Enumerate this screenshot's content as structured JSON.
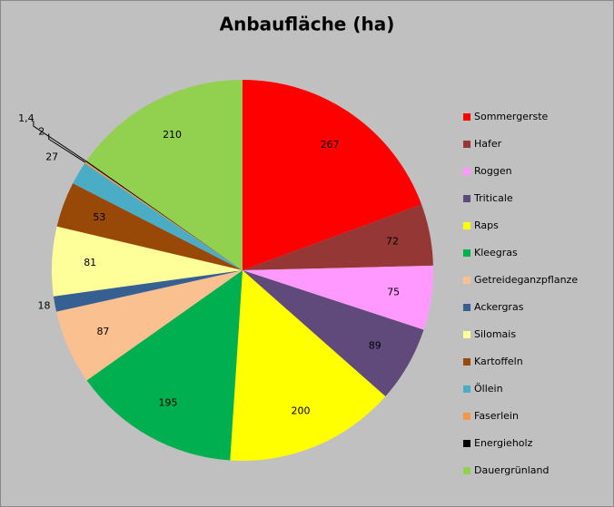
{
  "chart_data": {
    "type": "pie",
    "title": "Anbaufläche (ha)",
    "categories": [
      "Sommergerste",
      "Hafer",
      "Roggen",
      "Triticale",
      "Raps",
      "Kleegras",
      "Getreideganzpflanze",
      "Ackergras",
      "Silomais",
      "Kartoffeln",
      "Öllein",
      "Faserlein",
      "Energieholz",
      "Dauergrünland"
    ],
    "values": [
      267,
      72,
      75,
      89,
      200,
      195,
      87,
      18,
      81,
      53,
      27,
      2,
      1.4,
      210
    ],
    "value_labels": [
      "267",
      "72",
      "75",
      "89",
      "200",
      "195",
      "87",
      "18",
      "81",
      "53",
      "27",
      "2",
      "1,4",
      "210"
    ],
    "colors": [
      "#ff0000",
      "#953735",
      "#ff99ff",
      "#604a7b",
      "#ffff00",
      "#00b050",
      "#fac090",
      "#376092",
      "#ffff99",
      "#984807",
      "#4bacc6",
      "#f79646",
      "#000000",
      "#92d050"
    ],
    "legend": "right"
  }
}
